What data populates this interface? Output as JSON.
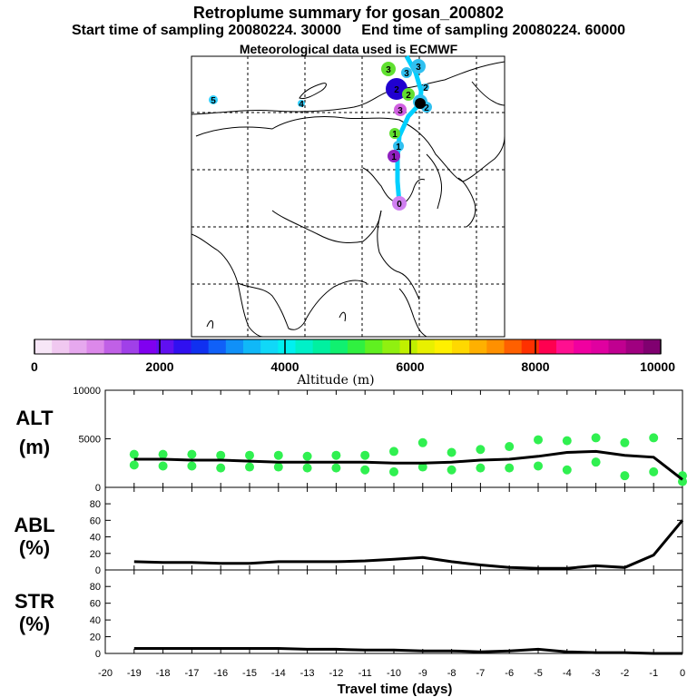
{
  "header": {
    "title": "Retroplume summary for gosan_200802",
    "start_time": "Start time of sampling 20080224. 30000",
    "end_time": "End time of sampling 20080224. 60000",
    "met_data": "Meteorological data used is ECMWF"
  },
  "colorbar": {
    "label": "Altitude (m)",
    "ticks": [
      "0",
      "2000",
      "4000",
      "6000",
      "8000",
      "10000"
    ],
    "colors": [
      "#f7e6f7",
      "#f0c8f0",
      "#e6a8ee",
      "#dc88ea",
      "#c060e6",
      "#a040e8",
      "#8000f0",
      "#6010f0",
      "#3010f0",
      "#1030f0",
      "#1060f8",
      "#1090f8",
      "#10b8f8",
      "#10d8f8",
      "#00f0f0",
      "#00f0c8",
      "#00f0a0",
      "#10f070",
      "#30f040",
      "#60f020",
      "#90f010",
      "#c0f000",
      "#e8f000",
      "#fff000",
      "#ffd800",
      "#ffb000",
      "#ff9000",
      "#ff6000",
      "#ff3000",
      "#ff0050",
      "#ff1090",
      "#f000a0",
      "#e000a0",
      "#c00090",
      "#a00080",
      "#800070"
    ]
  },
  "map": {
    "markers": [
      {
        "label": "5",
        "color": "#30d0ff"
      },
      {
        "label": "4",
        "color": "#30d0ff"
      },
      {
        "label": "3",
        "color": "#60e030"
      },
      {
        "label": "3",
        "color": "#30c0f0"
      },
      {
        "label": "3",
        "color": "#30c0f0"
      },
      {
        "label": "2",
        "color": "#2000d0"
      },
      {
        "label": "2",
        "color": "#60e030"
      },
      {
        "label": "2",
        "color": "#30c0f0"
      },
      {
        "label": "2",
        "color": "#30c0f0"
      },
      {
        "label": "2",
        "color": "#30c0f0"
      },
      {
        "label": "2",
        "color": "#000000"
      },
      {
        "label": "3",
        "color": "#d060e0"
      },
      {
        "label": "1",
        "color": "#60e030"
      },
      {
        "label": "1",
        "color": "#30c0f0"
      },
      {
        "label": "1",
        "color": "#9020c0"
      },
      {
        "label": "0",
        "color": "#d080f0"
      }
    ]
  },
  "chart_data": [
    {
      "type": "line",
      "panel": "ALT",
      "ylabel": "ALT\n(m)",
      "ylabel_line1": "ALT",
      "ylabel_line2": "(m)",
      "ylim": [
        0,
        10000
      ],
      "yticks": [
        "0",
        "5000",
        "10000"
      ],
      "x": [
        -19,
        -18,
        -17,
        -16,
        -15,
        -14,
        -13,
        -12,
        -11,
        -10,
        -9,
        -8,
        -7,
        -6,
        -5,
        -4,
        -3,
        -2,
        -1,
        0
      ],
      "series": [
        {
          "name": "mean altitude",
          "values": [
            2900,
            2900,
            2800,
            2800,
            2700,
            2600,
            2600,
            2600,
            2600,
            2500,
            2500,
            2600,
            2800,
            2900,
            3200,
            3600,
            3700,
            3300,
            3100,
            800
          ]
        }
      ],
      "cluster_points": {
        "upper": [
          3400,
          3400,
          3400,
          3300,
          3300,
          3300,
          3200,
          3300,
          3300,
          3700,
          4600,
          3600,
          3900,
          4200,
          4900,
          4800,
          5100,
          4600,
          5100,
          1200
        ],
        "lower": [
          2300,
          2200,
          2200,
          2000,
          2100,
          2100,
          2000,
          2000,
          1800,
          1600,
          2100,
          1800,
          2000,
          2000,
          2200,
          1800,
          2600,
          1200,
          1600,
          600
        ]
      }
    },
    {
      "type": "line",
      "panel": "ABL",
      "ylabel_line1": "ABL",
      "ylabel_line2": "(%)",
      "ylim": [
        0,
        90
      ],
      "yticks": [
        "0",
        "20",
        "40",
        "60",
        "80"
      ],
      "x": [
        -19,
        -18,
        -17,
        -16,
        -15,
        -14,
        -13,
        -12,
        -11,
        -10,
        -9,
        -8,
        -7,
        -6,
        -5,
        -4,
        -3,
        -2,
        -1,
        0
      ],
      "series": [
        {
          "name": "ABL fraction",
          "values": [
            10,
            9,
            9,
            8,
            8,
            10,
            10,
            10,
            11,
            13,
            15,
            10,
            6,
            3,
            2,
            2,
            5,
            3,
            18,
            60
          ]
        }
      ]
    },
    {
      "type": "line",
      "panel": "STR",
      "ylabel_line1": "STR",
      "ylabel_line2": "(%)",
      "ylim": [
        0,
        90
      ],
      "yticks": [
        "0",
        "20",
        "40",
        "60",
        "80"
      ],
      "x": [
        -19,
        -18,
        -17,
        -16,
        -15,
        -14,
        -13,
        -12,
        -11,
        -10,
        -9,
        -8,
        -7,
        -6,
        -5,
        -4,
        -3,
        -2,
        -1,
        0
      ],
      "series": [
        {
          "name": "STR fraction",
          "values": [
            6,
            6,
            6,
            6,
            6,
            6,
            5,
            5,
            4,
            4,
            3,
            3,
            2,
            3,
            5,
            2,
            1,
            1,
            0,
            0
          ]
        }
      ]
    }
  ],
  "xaxis": {
    "label": "Travel time (days)",
    "ticks": [
      "-20",
      "-19",
      "-18",
      "-17",
      "-16",
      "-15",
      "-14",
      "-13",
      "-12",
      "-11",
      "-10",
      "-9",
      "-8",
      "-7",
      "-6",
      "-5",
      "-4",
      "-3",
      "-2",
      "-1",
      "0"
    ]
  }
}
